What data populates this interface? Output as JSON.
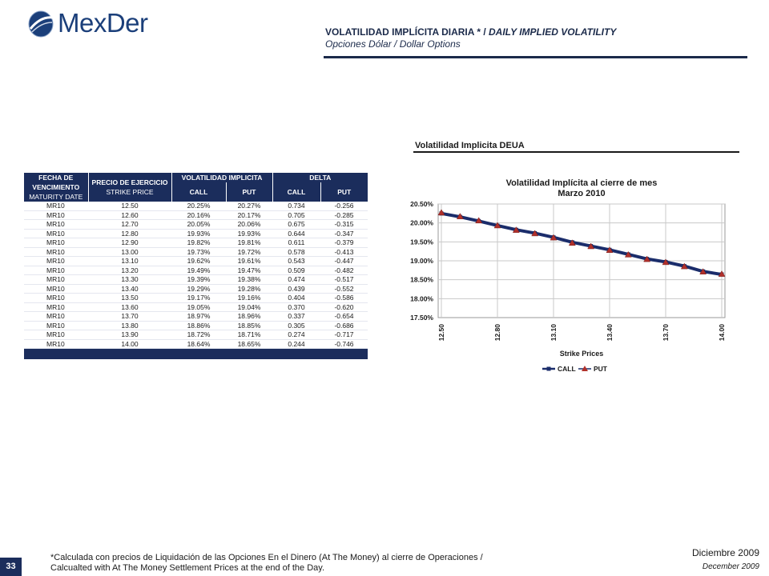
{
  "brand": {
    "logo_text": "MexDer"
  },
  "header": {
    "title_es": "VOLATILIDAD IMPLÍCITA DIARIA * / ",
    "title_en": "DAILY IMPLIED VOLATILITY",
    "subtitle": "Opciones Dólar / Dollar Options"
  },
  "chart_heading": "Volatilidad Implicita DEUA",
  "table": {
    "headers": {
      "maturity": [
        "FECHA DE",
        "VENCIMIENTO",
        "MATURITY DATE"
      ],
      "strike": [
        "PRECIO DE EJERCICIO",
        "STRIKE PRICE"
      ],
      "volatility": "VOLATILIDAD IMPLICITA",
      "delta": "DELTA",
      "call": "CALL",
      "put": "PUT"
    },
    "rows": [
      [
        "MR10",
        "12.50",
        "20.25%",
        "20.27%",
        "0.734",
        "-0.256"
      ],
      [
        "MR10",
        "12.60",
        "20.16%",
        "20.17%",
        "0.705",
        "-0.285"
      ],
      [
        "MR10",
        "12.70",
        "20.05%",
        "20.06%",
        "0.675",
        "-0.315"
      ],
      [
        "MR10",
        "12.80",
        "19.93%",
        "19.93%",
        "0.644",
        "-0.347"
      ],
      [
        "MR10",
        "12.90",
        "19.82%",
        "19.81%",
        "0.611",
        "-0.379"
      ],
      [
        "MR10",
        "13.00",
        "19.73%",
        "19.72%",
        "0.578",
        "-0.413"
      ],
      [
        "MR10",
        "13.10",
        "19.62%",
        "19.61%",
        "0.543",
        "-0.447"
      ],
      [
        "MR10",
        "13.20",
        "19.49%",
        "19.47%",
        "0.509",
        "-0.482"
      ],
      [
        "MR10",
        "13.30",
        "19.39%",
        "19.38%",
        "0.474",
        "-0.517"
      ],
      [
        "MR10",
        "13.40",
        "19.29%",
        "19.28%",
        "0.439",
        "-0.552"
      ],
      [
        "MR10",
        "13.50",
        "19.17%",
        "19.16%",
        "0.404",
        "-0.586"
      ],
      [
        "MR10",
        "13.60",
        "19.05%",
        "19.04%",
        "0.370",
        "-0.620"
      ],
      [
        "MR10",
        "13.70",
        "18.97%",
        "18.96%",
        "0.337",
        "-0.654"
      ],
      [
        "MR10",
        "13.80",
        "18.86%",
        "18.85%",
        "0.305",
        "-0.686"
      ],
      [
        "MR10",
        "13.90",
        "18.72%",
        "18.71%",
        "0.274",
        "-0.717"
      ],
      [
        "MR10",
        "14.00",
        "18.64%",
        "18.65%",
        "0.244",
        "-0.746"
      ]
    ]
  },
  "chart_data": {
    "type": "line",
    "title": "Volatilidad Implícita al cierre de mes",
    "subtitle": "Marzo 2010",
    "xlabel": "Strike Prices",
    "ylabel": "",
    "x": [
      12.5,
      12.6,
      12.7,
      12.8,
      12.9,
      13.0,
      13.1,
      13.2,
      13.3,
      13.4,
      13.5,
      13.6,
      13.7,
      13.8,
      13.9,
      14.0
    ],
    "x_tick_labels": [
      "12.50",
      "12.80",
      "13.10",
      "13.40",
      "13.70",
      "14.00"
    ],
    "x_ticks": [
      12.5,
      12.8,
      13.1,
      13.4,
      13.7,
      14.0
    ],
    "y_ticks": [
      17.5,
      18.0,
      18.5,
      19.0,
      19.5,
      20.0,
      20.5
    ],
    "y_tick_labels": [
      "17.50%",
      "18.00%",
      "18.50%",
      "19.00%",
      "19.50%",
      "20.00%",
      "20.50%"
    ],
    "ylim": [
      17.5,
      20.5
    ],
    "grid": true,
    "legend": "bottom",
    "series": [
      {
        "name": "CALL",
        "color": "#1b2d6b",
        "marker": "square",
        "values": [
          20.25,
          20.16,
          20.05,
          19.93,
          19.82,
          19.73,
          19.62,
          19.49,
          19.39,
          19.29,
          19.17,
          19.05,
          18.97,
          18.86,
          18.72,
          18.64
        ]
      },
      {
        "name": "PUT",
        "color": "#b0302b",
        "marker": "triangle",
        "values": [
          20.27,
          20.17,
          20.06,
          19.93,
          19.81,
          19.72,
          19.61,
          19.47,
          19.38,
          19.28,
          19.16,
          19.04,
          18.96,
          18.85,
          18.71,
          18.65
        ]
      }
    ]
  },
  "footnote": {
    "line1": "*Calculada con precios de Liquidación de las Opciones En el Dinero (At The Money) al cierre de Operaciones /",
    "line2": "Calcualted with At The Money Settlement Prices at the end of the Day."
  },
  "page_number": "33",
  "date_es": "Diciembre 2009",
  "date_en": "December 2009"
}
